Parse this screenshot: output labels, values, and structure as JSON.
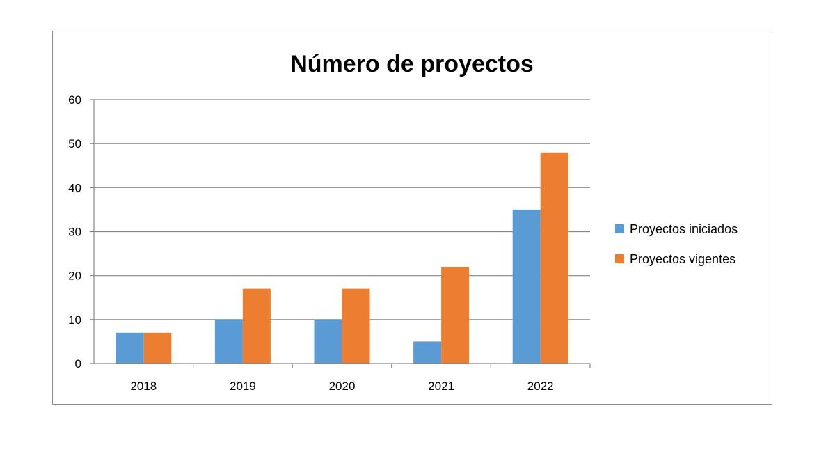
{
  "chart_data": {
    "type": "bar",
    "title": "Número de proyectos",
    "xlabel": "",
    "ylabel": "",
    "categories": [
      "2018",
      "2019",
      "2020",
      "2021",
      "2022"
    ],
    "series": [
      {
        "name": "Proyectos iniciados",
        "values": [
          7,
          10,
          10,
          5,
          35
        ],
        "color": "#5b9bd5"
      },
      {
        "name": "Proyectos vigentes",
        "values": [
          7,
          17,
          17,
          22,
          48
        ],
        "color": "#ed7d31"
      }
    ],
    "ylim": [
      0,
      60
    ],
    "yticks": [
      0,
      10,
      20,
      30,
      40,
      50,
      60
    ],
    "grid": true,
    "legend_position": "right"
  }
}
